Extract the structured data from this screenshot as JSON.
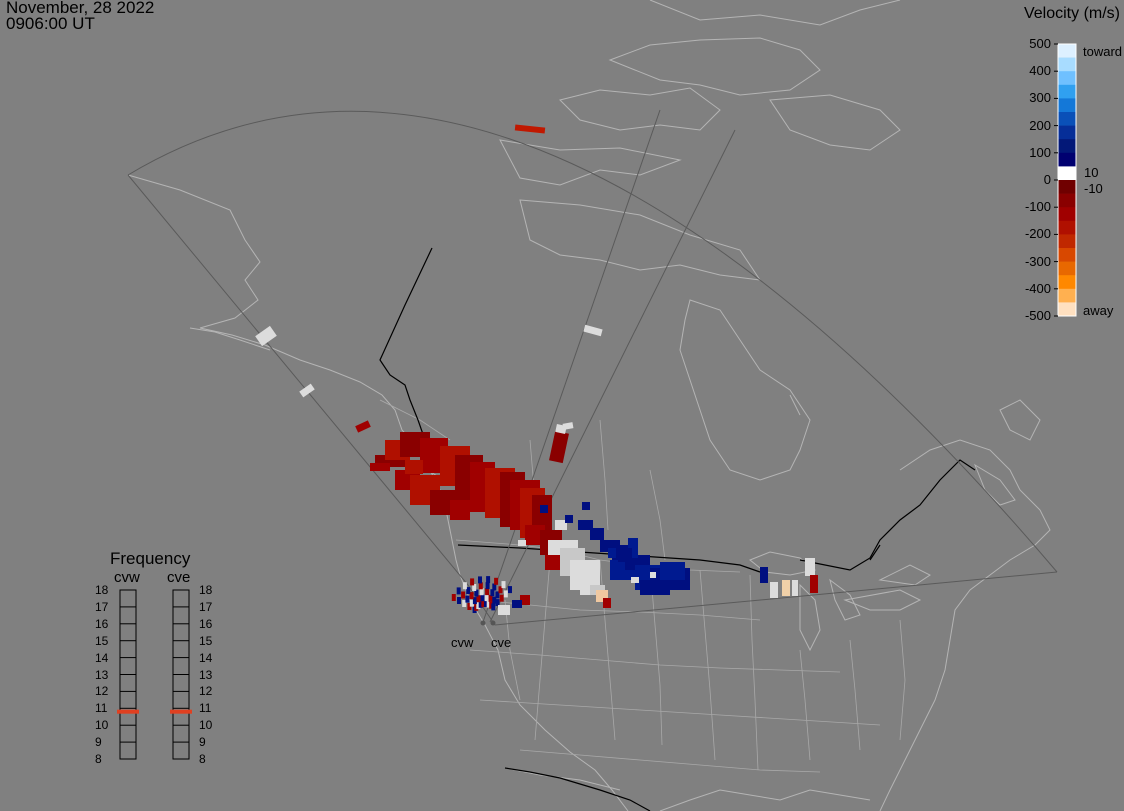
{
  "header": {
    "date": "November, 28 2022",
    "time": "0906:00 UT"
  },
  "velocity_scale": {
    "title": "Velocity (m/s)",
    "ticks": [
      "500",
      "400",
      "300",
      "200",
      "100",
      "0",
      "-100",
      "-200",
      "-300",
      "-400",
      "-500"
    ],
    "toward_label": "toward",
    "away_label": "away",
    "inner_pos_label": "10",
    "inner_neg_label": "-10",
    "colors": [
      "#ddf0ff",
      "#a8dcff",
      "#6fc0ff",
      "#30a0f0",
      "#1478d8",
      "#0a50b8",
      "#062e98",
      "#031878",
      "#000070",
      "#ffffff",
      "#700000",
      "#8a0000",
      "#a00000",
      "#b01000",
      "#c02800",
      "#d84800",
      "#e86800",
      "#ff8800",
      "#ffb050",
      "#ffe0c0"
    ]
  },
  "frequency": {
    "title": "Frequency",
    "stations": [
      {
        "name": "cvw",
        "selected_mhz": 10.8
      },
      {
        "name": "cve",
        "selected_mhz": 10.8
      }
    ],
    "ticks": [
      "18",
      "17",
      "16",
      "15",
      "14",
      "13",
      "12",
      "11",
      "10",
      "9",
      "8"
    ],
    "marker_color": "#e04020"
  },
  "radar_sites": [
    "cvw",
    "cve"
  ],
  "colors": {
    "background": "#808080",
    "coastline": "#b4b4b4",
    "border": "#000000",
    "fov": "#5a5a5a"
  }
}
